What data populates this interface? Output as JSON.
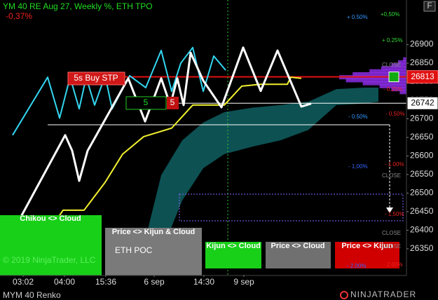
{
  "chart_data": {
    "type": "line",
    "title": "YM 40 RE  Aug 27, Weekly %, ETH TPO",
    "subtitle": "-0,37%",
    "xlim": [
      0,
      116
    ],
    "xticks": [
      {
        "value": 6.6,
        "label": "03:02"
      },
      {
        "value": 18.4,
        "label": "04:00"
      },
      {
        "value": 30.2,
        "label": "15:36"
      },
      {
        "value": 44,
        "label": "6 sep"
      },
      {
        "value": 58.2,
        "label": "14:30"
      },
      {
        "value": 69.6,
        "label": "9 sep"
      }
    ],
    "ylim": [
      26280,
      27020
    ],
    "yticks": [
      26350,
      26400,
      26450,
      26500,
      26550,
      26600,
      26650,
      26700,
      26750,
      26800,
      26850,
      26900
    ],
    "series": [
      {
        "color": "#33d6f0",
        "x": [
          3.6,
          13.6,
          17,
          20,
          22.6,
          24.6,
          27,
          30,
          32,
          37,
          41.6,
          46,
          49,
          51.6,
          55,
          58,
          61,
          64.4
        ],
        "values": [
          26656,
          26812,
          26702,
          26812,
          26727,
          26812,
          26737,
          26816,
          26727,
          26816,
          26784,
          26884,
          26774,
          26850,
          26892,
          26774,
          26869,
          26831
        ]
      },
      {
        "color": "#f0f030",
        "x": [
          8,
          18,
          24,
          30,
          35,
          41,
          49,
          55,
          64,
          69,
          74.4,
          82,
          83,
          86
        ],
        "values": [
          26312,
          26454,
          26454,
          26529,
          26605,
          26652,
          26675,
          26737,
          26737,
          26788,
          26793,
          26793,
          26812,
          26809
        ]
      },
      {
        "color": "#ffffff",
        "x": [
          2.4,
          18.6,
          20.6,
          22.6,
          25,
          36.6,
          41.4,
          46,
          48.6,
          50.6,
          52.4,
          54.4,
          58,
          63.2,
          69.4,
          74.4,
          79.2,
          86,
          88.8
        ],
        "values": [
          26374,
          26656,
          26614,
          26533,
          26614,
          26809,
          26693,
          26809,
          26737,
          26809,
          26737,
          26878,
          26803,
          26731,
          26892,
          26775,
          26884,
          26733,
          26741
        ]
      }
    ],
    "cloud": {
      "color": "#0e5a5c",
      "x": [
        39,
        46,
        52,
        58,
        64,
        72,
        80,
        88,
        96,
        104,
        108
      ],
      "upper": [
        26280,
        26548,
        26642,
        26690,
        26718,
        26730,
        26737,
        26746,
        26780,
        26784,
        26784
      ],
      "lower": [
        26280,
        26340,
        26480,
        26567,
        26605,
        26625,
        26642,
        26670,
        26737,
        26741,
        26746
      ]
    },
    "profile": {
      "color": "#8a2be2",
      "prices": [
        26860,
        26852,
        26844,
        26836,
        26828,
        26820,
        26812,
        26804,
        26796,
        26788,
        26780,
        26772
      ],
      "values": [
        2,
        5,
        9,
        15,
        22,
        32,
        40,
        36,
        26,
        16,
        9,
        4
      ]
    },
    "price_markers": [
      {
        "value": 26813,
        "color": "#e01010"
      },
      {
        "value": 26742,
        "color": "#ffffff"
      }
    ],
    "order": {
      "label": "5s  Buy STP",
      "quantity": "5",
      "filled": "5"
    },
    "percent_labels": [
      "+ 0.50%",
      "+0,50%",
      "+ 0.25%",
      "CLOSE",
      "- 0.25%",
      "- 0.50%",
      "- 0,50%",
      "- 1,00%",
      "- 1.00%",
      "CLOSE",
      "- 1,50%",
      "CLOSE",
      "CLOSE",
      "- 2.00%",
      "- 2.00%"
    ],
    "signals": [
      "Chikou <> Cloud",
      "Price <> Kijun & Cloud",
      "ETH POC",
      "Kijun <> Cloud",
      "Price <> Cloud",
      "Price <> Kijun"
    ],
    "copyright": "© 2019 NinjaTrader, LLC",
    "instrument": "MYM 40 Renko",
    "logo": "NINJATRADER",
    "button": "F"
  }
}
